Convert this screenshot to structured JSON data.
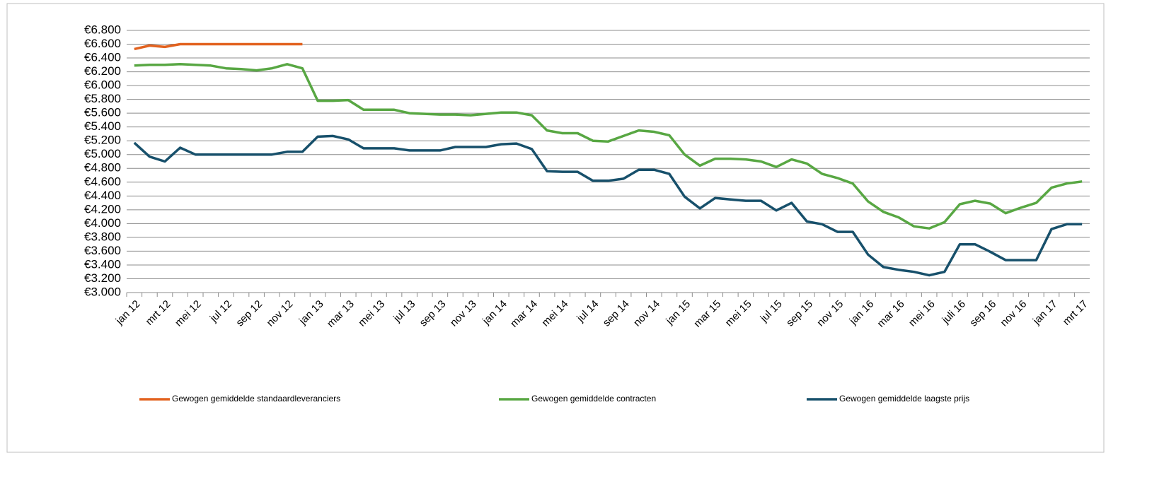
{
  "chart_data": {
    "type": "line",
    "categories": [
      "jan 12",
      null,
      "mrt 12",
      null,
      "mei 12",
      null,
      "jul 12",
      null,
      "sep 12",
      null,
      "nov 12",
      null,
      "jan 13",
      null,
      "mar 13",
      null,
      "mei 13",
      null,
      "jul 13",
      null,
      "sep 13",
      null,
      "nov 13",
      null,
      "jan 14",
      null,
      "mar 14",
      null,
      "mei 14",
      null,
      "jul 14",
      null,
      "sep 14",
      null,
      "nov 14",
      null,
      "jan 15",
      null,
      "mar 15",
      null,
      "mei 15",
      null,
      "jul 15",
      null,
      "sep 15",
      null,
      "nov 15",
      null,
      "jan 16",
      null,
      "mar 16",
      null,
      "mei 16",
      null,
      "juli 16",
      null,
      "sep 16",
      null,
      "nov 16",
      null,
      "jan 17",
      null,
      "mrt 17"
    ],
    "series": [
      {
        "name": "Gewogen gemiddelde standaardleveranciers",
        "color": "#e2621f",
        "values": [
          6530,
          6580,
          6560,
          6600,
          6600,
          6600,
          6600,
          6600,
          6600,
          6600,
          6600,
          6600,
          null,
          null,
          null,
          null,
          null,
          null,
          null,
          null,
          null,
          null,
          null,
          null,
          null,
          null,
          null,
          null,
          null,
          null,
          null,
          null,
          null,
          null,
          null,
          null,
          null,
          null,
          null,
          null,
          null,
          null,
          null,
          null,
          null,
          null,
          null,
          null,
          null,
          null,
          null,
          null,
          null,
          null,
          null,
          null,
          null,
          null,
          null,
          null,
          null,
          null,
          null
        ]
      },
      {
        "name": "Gewogen gemiddelde contracten",
        "color": "#58a743",
        "values": [
          6290,
          6300,
          6300,
          6310,
          6300,
          6290,
          6250,
          6240,
          6220,
          6250,
          6310,
          6250,
          5780,
          5780,
          5790,
          5650,
          5650,
          5650,
          5600,
          5590,
          5580,
          5580,
          5570,
          5590,
          5610,
          5610,
          5570,
          5350,
          5310,
          5310,
          5200,
          5190,
          5270,
          5350,
          5330,
          5280,
          5000,
          4840,
          4940,
          4940,
          4930,
          4900,
          4820,
          4930,
          4870,
          4720,
          4660,
          4580,
          4320,
          4170,
          4090,
          3960,
          3930,
          4020,
          4280,
          4330,
          4290,
          4150,
          4230,
          4300,
          4520,
          4580,
          4610
        ]
      },
      {
        "name": "Gewogen gemiddelde laagste prijs",
        "color": "#17506b",
        "values": [
          5170,
          4970,
          4900,
          5100,
          5000,
          5000,
          5000,
          5000,
          5000,
          5000,
          5040,
          5040,
          5260,
          5270,
          5220,
          5090,
          5090,
          5090,
          5060,
          5060,
          5060,
          5110,
          5110,
          5110,
          5150,
          5160,
          5080,
          4760,
          4750,
          4750,
          4620,
          4620,
          4650,
          4780,
          4780,
          4720,
          4390,
          4220,
          4370,
          4350,
          4330,
          4330,
          4190,
          4300,
          4030,
          3990,
          3880,
          3880,
          3550,
          3370,
          3330,
          3300,
          3250,
          3300,
          3700,
          3700,
          3590,
          3470,
          3470,
          3470,
          3920,
          3990,
          3990
        ]
      }
    ],
    "ylim": [
      3000,
      6800
    ],
    "yticks": [
      {
        "value": 3000,
        "label": "€3.000"
      },
      {
        "value": 3200,
        "label": "€3.200"
      },
      {
        "value": 3400,
        "label": "€3.400"
      },
      {
        "value": 3600,
        "label": "€3.600"
      },
      {
        "value": 3800,
        "label": "€3.800"
      },
      {
        "value": 4000,
        "label": "€4.000"
      },
      {
        "value": 4200,
        "label": "€4.200"
      },
      {
        "value": 4400,
        "label": "€4.400"
      },
      {
        "value": 4600,
        "label": "€4.600"
      },
      {
        "value": 4800,
        "label": "€4.800"
      },
      {
        "value": 5000,
        "label": "€5.000"
      },
      {
        "value": 5200,
        "label": "€5.200"
      },
      {
        "value": 5400,
        "label": "€5.400"
      },
      {
        "value": 5600,
        "label": "€5.600"
      },
      {
        "value": 5800,
        "label": "€5.800"
      },
      {
        "value": 6000,
        "label": "€6.000"
      },
      {
        "value": 6200,
        "label": "€6.200"
      },
      {
        "value": 6400,
        "label": "€6.400"
      },
      {
        "value": 6600,
        "label": "€6.600"
      },
      {
        "value": 6800,
        "label": "€6.800"
      }
    ],
    "grid": true,
    "legend": "bottom"
  }
}
